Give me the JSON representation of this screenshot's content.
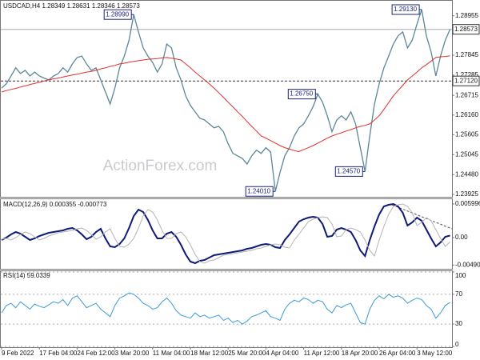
{
  "chart_data": [
    {
      "type": "line",
      "title": "USDCAD,H4 1.28349 1.28631 1.28346 1.28573",
      "watermark": "ActionForex.com",
      "categories": [
        "9 Feb 2022",
        null,
        null,
        null,
        null,
        null,
        null,
        null,
        "17 Feb 04:00",
        null,
        null,
        null,
        null,
        null,
        null,
        null,
        "24 Feb 12:00",
        null,
        null,
        null,
        null,
        null,
        null,
        null,
        "3 Mar 20:00",
        null,
        null,
        null,
        null,
        null,
        null,
        null,
        "11 Mar 04:00",
        null,
        null,
        null,
        null,
        null,
        null,
        null,
        "18 Mar 12:00",
        null,
        null,
        null,
        null,
        null,
        null,
        null,
        "25 Mar 20:00",
        null,
        null,
        null,
        null,
        null,
        null,
        null,
        "4 Apr 04:00",
        null,
        null,
        null,
        null,
        null,
        null,
        null,
        "11 Apr 12:00",
        null,
        null,
        null,
        null,
        null,
        null,
        null,
        "18 Apr 20:00",
        null,
        null,
        null,
        null,
        null,
        null,
        null,
        "26 Apr 04:00",
        null,
        null,
        null,
        null,
        null,
        null,
        null,
        "3 May 12:00",
        null,
        null,
        null,
        null,
        null,
        null,
        null
      ],
      "series": [
        {
          "color": "#5b8799",
          "values": [
            1.2692,
            1.2704,
            1.2726,
            1.2749,
            1.2733,
            1.2742,
            1.2726,
            1.2737,
            1.2726,
            1.272,
            1.2715,
            1.2726,
            1.2733,
            1.2749,
            1.2737,
            1.276,
            1.2778,
            1.2782,
            1.276,
            1.2742,
            1.2749,
            1.2715,
            1.2681,
            1.2647,
            1.2692,
            1.2749,
            1.2782,
            1.2827,
            1.2899,
            1.285,
            1.2805,
            1.2782,
            1.2764,
            1.2737,
            1.276,
            1.2816,
            1.2805,
            1.2749,
            1.2715,
            1.267,
            1.2643,
            1.2625,
            1.2607,
            1.2602,
            1.2591,
            1.258,
            1.2584,
            1.2569,
            1.2535,
            1.2508,
            1.2501,
            1.2494,
            1.2478,
            1.2501,
            1.2517,
            1.2508,
            1.2524,
            1.2512,
            1.2401,
            1.2455,
            1.2501,
            1.2524,
            1.2557,
            1.258,
            1.2591,
            1.2614,
            1.264,
            1.2675,
            1.2652,
            1.2614,
            1.2569,
            1.2602,
            1.2614,
            1.2602,
            1.2625,
            1.2591,
            1.2524,
            1.2457,
            1.2557,
            1.2647,
            1.2704,
            1.2749,
            1.2782,
            1.2816,
            1.2839,
            1.285,
            1.2805,
            1.2827,
            1.2872,
            1.2913,
            1.2839,
            1.2794,
            1.2726,
            1.2782,
            1.2827,
            1.28573
          ]
        },
        {
          "color": "#e0302b",
          "values": [
            1.2681,
            1.2685,
            1.2688,
            1.2691,
            1.2695,
            1.2698,
            1.2702,
            1.2705,
            1.2708,
            1.2712,
            1.2715,
            1.2718,
            1.272,
            1.2723,
            1.2726,
            1.2729,
            1.2731,
            1.2734,
            1.2737,
            1.2739,
            1.2742,
            1.2746,
            1.2749,
            1.2753,
            1.2756,
            1.276,
            1.2762,
            1.2765,
            1.2767,
            1.2769,
            1.2771,
            1.2773,
            1.2774,
            1.2775,
            1.2777,
            1.2778,
            1.2776,
            1.2774,
            1.2771,
            1.276,
            1.2749,
            1.2737,
            1.2726,
            1.2715,
            1.2704,
            1.2692,
            1.2679,
            1.2666,
            1.2652,
            1.2639,
            1.2625,
            1.2612,
            1.2598,
            1.2584,
            1.2571,
            1.2557,
            1.2551,
            1.2544,
            1.2537,
            1.253,
            1.2524,
            1.252,
            1.2516,
            1.2513,
            1.2519,
            1.2524,
            1.253,
            1.2537,
            1.2544,
            1.2551,
            1.2557,
            1.2562,
            1.2566,
            1.2571,
            1.2575,
            1.258,
            1.2584,
            1.2587,
            1.2591,
            1.2602,
            1.2614,
            1.2632,
            1.2651,
            1.267,
            1.2685,
            1.27,
            1.2715,
            1.2726,
            1.2737,
            1.2749,
            1.2758,
            1.2768,
            1.2778,
            1.278,
            1.2781,
            1.2783
          ]
        }
      ],
      "ylim": [
        1.2388,
        1.294
      ],
      "yticks": [
        1.28955,
        1.27845,
        1.27285,
        1.26715,
        {
          "value": 1.2616,
          "label": "1.26160"
        },
        1.25605,
        1.25045,
        {
          "value": 1.2448,
          "label": "1.24480"
        },
        1.23925
      ],
      "lines": [
        {
          "value": 1.28573,
          "label": "1.28573"
        },
        {
          "value": 1.2712,
          "label": "1.27120"
        }
      ],
      "annotations": [
        {
          "value": 1.2899,
          "label": "1.28990"
        },
        {
          "value": 1.2913,
          "label": "1.29130"
        },
        {
          "value": 1.2675,
          "label": "1.26750"
        },
        {
          "value": 1.2401,
          "label": "1.24010"
        },
        {
          "value": 1.2457,
          "label": "1.24570"
        }
      ]
    },
    {
      "type": "line",
      "title": "MACD(12,26,9) 0.000355 -0.000773",
      "series": [
        {
          "color": "#0d1a78",
          "values": [
            -0.000429,
            0,
            0.000571,
            0.001,
            0.000714,
            0.000143,
            -0.000429,
            -0.000143,
            0.000286,
            0.000571,
            0.000857,
            0.001,
            0.001143,
            0.001286,
            0.001571,
            0.001714,
            0.001286,
            0.000571,
            -0.000286,
            0.000143,
            0.001,
            0.001571,
            -0.000143,
            -0.001571,
            -0.001714,
            -0.001143,
            -0.000143,
            0.001714,
            0.003857,
            0.005,
            0.004571,
            0.003143,
            0.001286,
            -0.000143,
            -0.000143,
            0.000714,
            0.001,
            0.000143,
            -0.001286,
            -0.003,
            -0.004286,
            -0.004571,
            -0.004143,
            -0.004,
            -0.003571,
            -0.003143,
            -0.003,
            -0.002857,
            -0.002714,
            -0.002571,
            -0.002429,
            -0.002286,
            -0.002,
            -0.001857,
            -0.001571,
            -0.001286,
            -0.001143,
            -0.001286,
            -0.001714,
            -0.001857,
            -0.000429,
            0.000571,
            0.001714,
            0.002857,
            0.003286,
            0.003571,
            0.003714,
            0.003571,
            0.002429,
            0.000143,
            0.000286,
            0.001429,
            0.001714,
            0.001429,
            0.001,
            -0.000429,
            -0.002286,
            -0.003286,
            -0.000429,
            0.002,
            0.004143,
            0.005571,
            0.005857,
            0.006,
            0.005571,
            0.004429,
            0.002143,
            0.002714,
            0.003571,
            0.003,
            0.001429,
            -0.000143,
            -0.001571,
            -0.000857,
            0.000143,
            0.000355
          ]
        },
        {
          "color": "#b4b4b4",
          "values": [
            -0.000286,
            -0.000143,
            -0.000429,
            0,
            0.000571,
            0.001,
            0.000714,
            0.000143,
            -0.000429,
            -0.000143,
            0.000286,
            0.000571,
            0.000857,
            0.001,
            0.001143,
            0.001286,
            0.001571,
            0.001714,
            0.001286,
            0.000571,
            -0.000286,
            0.000143,
            0.001,
            0.001571,
            -0.000143,
            -0.001571,
            -0.001714,
            -0.001143,
            -0.000143,
            0.001714,
            0.003857,
            0.005,
            0.004571,
            0.003143,
            0.001286,
            -0.000143,
            -0.000143,
            0.000714,
            0.001,
            0.000143,
            -0.001286,
            -0.003,
            -0.004286,
            -0.004571,
            -0.004143,
            -0.004,
            -0.003571,
            -0.003143,
            -0.003,
            -0.002857,
            -0.002714,
            -0.002571,
            -0.002429,
            -0.002286,
            -0.002,
            -0.001857,
            -0.001571,
            -0.001286,
            -0.001143,
            -0.001286,
            -0.001714,
            -0.001857,
            -0.000429,
            0.000571,
            0.001714,
            0.002857,
            0.003286,
            0.003571,
            0.003714,
            0.003571,
            0.002429,
            0.000143,
            0.000286,
            0.001429,
            0.001714,
            0.001429,
            0.001,
            -0.000429,
            -0.002286,
            -0.003286,
            -0.000429,
            0.002,
            0.004143,
            0.005571,
            0.005857,
            0.006,
            0.005571,
            0.004429,
            0.002143,
            0.002714,
            0.003571,
            0.003,
            0.001429,
            -0.000143,
            -0.001571,
            -0.000773
          ]
        }
      ],
      "ylim": [
        -0.00543,
        0.00671
      ],
      "yticks": [
        0.005996,
        {
          "value": 0,
          "label": "0.00"
        },
        -0.004901
      ]
    },
    {
      "type": "line",
      "title": "RSI(14) 59.0339",
      "series": [
        {
          "color": "#3a9ad9",
          "values": [
            45,
            55,
            58,
            52,
            60,
            55,
            50,
            57,
            54,
            52,
            56,
            60,
            58,
            63,
            55,
            65,
            68,
            60,
            52,
            55,
            58,
            50,
            45,
            40,
            55,
            65,
            68,
            72,
            70,
            65,
            58,
            55,
            50,
            52,
            60,
            65,
            58,
            48,
            42,
            40,
            38,
            45,
            40,
            42,
            38,
            40,
            42,
            35,
            38,
            32,
            35,
            30,
            34,
            40,
            42,
            45,
            48,
            40,
            38,
            35,
            50,
            58,
            62,
            60,
            65,
            63,
            58,
            62,
            60,
            50,
            45,
            55,
            52,
            56,
            58,
            45,
            32,
            30,
            50,
            62,
            68,
            64,
            70,
            66,
            68,
            65,
            58,
            62,
            65,
            63,
            55,
            50,
            38,
            45,
            55,
            59.0339
          ]
        }
      ],
      "ylim": [
        0,
        100
      ],
      "yticks": [
        100,
        70,
        30,
        0
      ],
      "grid": true
    }
  ]
}
